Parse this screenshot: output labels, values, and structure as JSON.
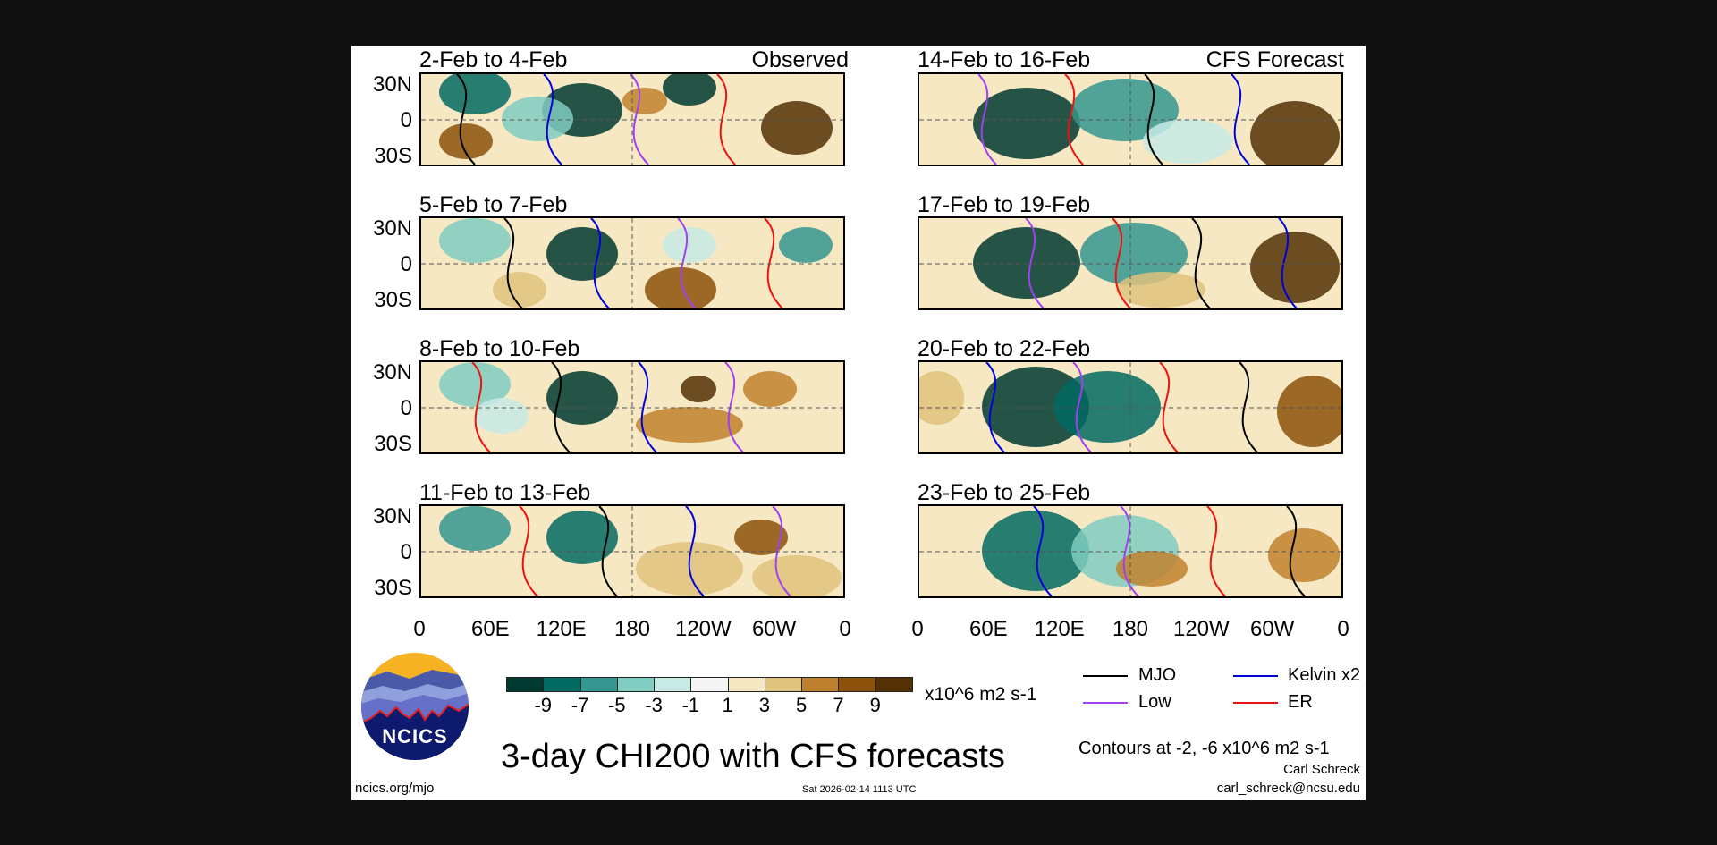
{
  "header": {
    "left_label": "Observed",
    "right_label": "CFS Forecast"
  },
  "panels": {
    "observed": [
      {
        "title": "2-Feb to 4-Feb"
      },
      {
        "title": "5-Feb to 7-Feb"
      },
      {
        "title": "8-Feb to 10-Feb"
      },
      {
        "title": "11-Feb to 13-Feb"
      }
    ],
    "forecast": [
      {
        "title": "14-Feb to 16-Feb"
      },
      {
        "title": "17-Feb to 19-Feb"
      },
      {
        "title": "20-Feb to 22-Feb"
      },
      {
        "title": "23-Feb to 25-Feb"
      }
    ]
  },
  "axes": {
    "y_ticks": [
      "30N",
      "0",
      "30S"
    ],
    "x_ticks": [
      "0",
      "60E",
      "120E",
      "180",
      "120W",
      "60W",
      "0"
    ]
  },
  "colorbar": {
    "colors": [
      "#003a30",
      "#016a61",
      "#35978f",
      "#80cdc1",
      "#c7eae5",
      "#f5f5f5",
      "#f6e8c3",
      "#dfc27d",
      "#bf812d",
      "#8c510a",
      "#543005"
    ],
    "labels": [
      "-9",
      "-7",
      "-5",
      "-3",
      "-1",
      "1",
      "3",
      "5",
      "7",
      "9"
    ],
    "units": "x10^6 m2 s-1"
  },
  "legend": {
    "items": [
      {
        "label": "MJO",
        "color": "#000000"
      },
      {
        "label": "Kelvin x2",
        "color": "#0000dd"
      },
      {
        "label": "Low",
        "color": "#a040f0"
      },
      {
        "label": "ER",
        "color": "#ee1111"
      }
    ],
    "contours_note": "Contours at -2, -6 x10^6 m2 s-1"
  },
  "footer": {
    "title": "3-day CHI200 with CFS forecasts",
    "timestamp": "Sat 2026-02-14 1113 UTC",
    "website": "ncics.org/mjo",
    "author": "Carl Schreck",
    "email": "carl_schreck@ncsu.edu",
    "logo_text": "NCICS"
  }
}
